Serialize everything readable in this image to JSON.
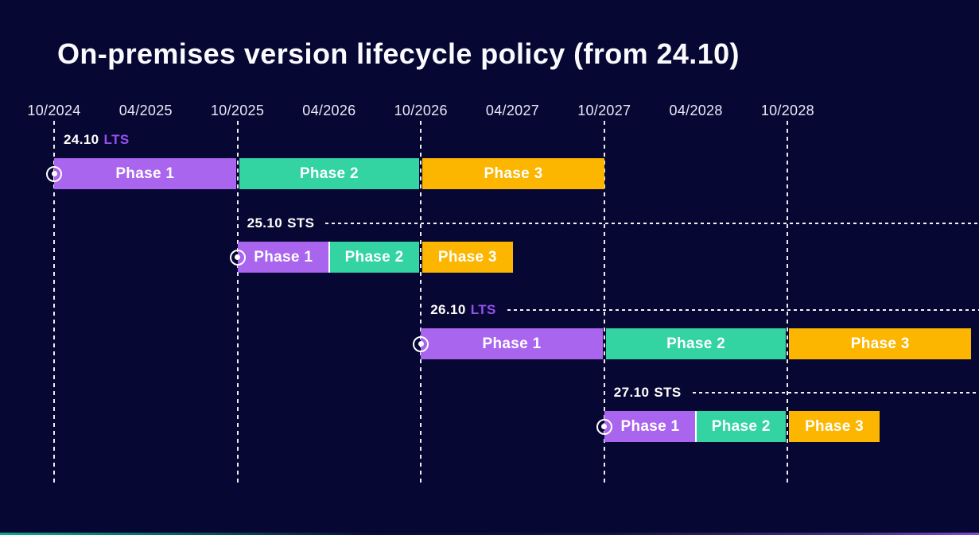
{
  "page": {
    "title": "On-premises version lifecycle policy (from 24.10)"
  },
  "colors": {
    "background": "#070733",
    "axis_text": "#eae8f5",
    "title_text": "#fafaff",
    "bar_text": "#ffffff",
    "dashed_line": "#ffffff",
    "lts_text": "#9550ee",
    "sts_text": "#ffffff",
    "phase_colors": {
      "Phase 1": "#a965ee",
      "Phase 2": "#33d3a2",
      "Phase 3": "#fcb600"
    }
  },
  "chart_data": {
    "type": "gantt",
    "title": "On-premises version lifecycle policy (from 24.10)",
    "x_ticks": [
      "10/2024",
      "04/2025",
      "10/2025",
      "04/2026",
      "10/2026",
      "04/2027",
      "10/2027",
      "04/2028",
      "10/2028"
    ],
    "gridlines_at": [
      "10/2024",
      "10/2025",
      "10/2026",
      "10/2027",
      "10/2028"
    ],
    "legend_position": "none",
    "rows": [
      {
        "version": "24.10",
        "release_type": "LTS",
        "leader_line": false,
        "release_marker_at": "10/2024",
        "phases": [
          {
            "name": "Phase 1",
            "start": "10/2024",
            "end": "10/2025"
          },
          {
            "name": "Phase 2",
            "start": "10/2025",
            "end": "10/2026"
          },
          {
            "name": "Phase 3",
            "start": "10/2026",
            "end": "10/2027"
          }
        ]
      },
      {
        "version": "25.10",
        "release_type": "STS",
        "leader_line": true,
        "release_marker_at": "10/2025",
        "phases": [
          {
            "name": "Phase 1",
            "start": "10/2025",
            "end": "04/2026"
          },
          {
            "name": "Phase 2",
            "start": "04/2026",
            "end": "10/2026"
          },
          {
            "name": "Phase 3",
            "start": "10/2026",
            "end": "04/2027"
          }
        ]
      },
      {
        "version": "26.10",
        "release_type": "LTS",
        "leader_line": true,
        "release_marker_at": "10/2026",
        "phases": [
          {
            "name": "Phase 1",
            "start": "10/2026",
            "end": "10/2027"
          },
          {
            "name": "Phase 2",
            "start": "10/2027",
            "end": "10/2028"
          },
          {
            "name": "Phase 3",
            "start": "10/2028",
            "end": "10/2029"
          }
        ]
      },
      {
        "version": "27.10",
        "release_type": "STS",
        "leader_line": true,
        "release_marker_at": "10/2027",
        "phases": [
          {
            "name": "Phase 1",
            "start": "10/2027",
            "end": "04/2028"
          },
          {
            "name": "Phase 2",
            "start": "04/2028",
            "end": "10/2028"
          },
          {
            "name": "Phase 3",
            "start": "10/2028",
            "end": "04/2029"
          }
        ]
      }
    ]
  }
}
